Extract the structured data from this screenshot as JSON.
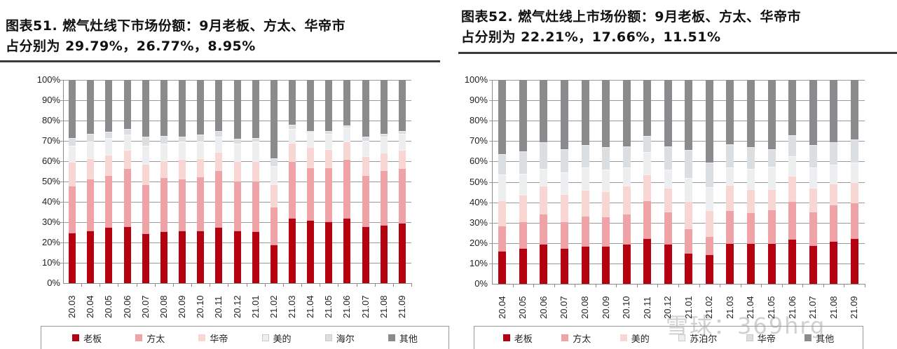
{
  "watermark": "雪球：369hrg",
  "chart_data": [
    {
      "type": "bar",
      "stacked": true,
      "title": "图表51. 燃气灶线下市场份额：9月老板、方太、华帝市占分别为 29.79%，26.77%，8.95%",
      "title_lines": [
        "图表51. 燃气灶线下市场份额：9月老板、方太、华帝市",
        "占分别为 29.79%，26.77%，8.95%"
      ],
      "xlabel": "",
      "ylabel": "",
      "ylim": [
        0,
        100
      ],
      "yticks": [
        "0%",
        "10%",
        "20%",
        "30%",
        "40%",
        "50%",
        "60%",
        "70%",
        "80%",
        "90%",
        "100%"
      ],
      "grid": true,
      "legend_position": "bottom",
      "categories": [
        "20.03",
        "20.04",
        "20.05",
        "20.06",
        "20.07",
        "20.08",
        "20.09",
        "20.10",
        "20.11",
        "20.12",
        "21.01",
        "21.02",
        "21.03",
        "21.04",
        "21.05",
        "21.06",
        "21.07",
        "21.08",
        "21.09"
      ],
      "series": [
        {
          "name": "老板",
          "color": "#b5000f",
          "values": [
            25.0,
            26.0,
            27.5,
            28.0,
            24.5,
            25.5,
            26.0,
            26.0,
            27.5,
            26.0,
            25.5,
            19.0,
            32.0,
            31.0,
            30.5,
            32.0,
            28.0,
            28.5,
            29.79
          ]
        },
        {
          "name": "方太",
          "color": "#f0a3a6",
          "values": [
            23.0,
            25.5,
            25.5,
            28.5,
            24.0,
            26.5,
            25.5,
            26.5,
            28.0,
            24.5,
            25.0,
            18.5,
            28.0,
            26.0,
            26.5,
            29.0,
            25.0,
            27.0,
            26.77
          ]
        },
        {
          "name": "华帝",
          "color": "#f8d6d4",
          "values": [
            11.5,
            10.0,
            10.0,
            9.0,
            10.0,
            8.5,
            9.5,
            9.0,
            9.0,
            9.5,
            9.5,
            11.0,
            9.0,
            10.0,
            9.0,
            8.5,
            9.5,
            8.5,
            8.95
          ]
        },
        {
          "name": "美的",
          "color": "#eceef0",
          "values": [
            8.0,
            8.0,
            8.5,
            7.5,
            9.0,
            8.0,
            8.5,
            8.0,
            7.5,
            8.5,
            9.5,
            9.0,
            7.0,
            7.0,
            7.5,
            7.0,
            7.5,
            8.0,
            8.0
          ]
        },
        {
          "name": "海尔",
          "color": "#dcdfe2",
          "values": [
            4.0,
            4.0,
            3.0,
            3.0,
            4.5,
            4.0,
            2.5,
            3.5,
            3.0,
            2.5,
            2.0,
            4.0,
            2.0,
            1.0,
            1.5,
            1.0,
            2.0,
            1.5,
            1.5
          ]
        },
        {
          "name": "其他",
          "color": "#8b8b8d",
          "values": [
            28.5,
            26.5,
            25.5,
            24.0,
            28.0,
            27.5,
            28.0,
            27.0,
            25.0,
            29.0,
            28.5,
            38.5,
            22.0,
            25.0,
            25.0,
            22.5,
            28.0,
            26.5,
            25.0
          ]
        }
      ]
    },
    {
      "type": "bar",
      "stacked": true,
      "title": "图表52. 燃气灶线上市场份额：9月老板、方太、华帝市占分别为 22.21%，17.66%，11.51%",
      "title_lines": [
        "图表52. 燃气灶线上市场份额：9月老板、方太、华帝市",
        "占分别为 22.21%，17.66%，11.51%"
      ],
      "xlabel": "",
      "ylabel": "",
      "ylim": [
        0,
        100
      ],
      "yticks": [
        "0%",
        "10%",
        "20%",
        "30%",
        "40%",
        "50%",
        "60%",
        "70%",
        "80%",
        "90%",
        "100%"
      ],
      "grid": true,
      "legend_position": "bottom",
      "categories": [
        "20.04",
        "20.05",
        "20.06",
        "20.07",
        "20.08",
        "20.09",
        "20.10",
        "20.11",
        "20.12",
        "21.01",
        "21.02",
        "21.03",
        "21.04",
        "21.05",
        "21.06",
        "21.07",
        "21.08",
        "21.09"
      ],
      "series": [
        {
          "name": "老板",
          "color": "#b5000f",
          "values": [
            16.0,
            17.5,
            19.5,
            17.5,
            18.5,
            18.5,
            19.5,
            22.5,
            19.5,
            15.0,
            14.5,
            20.0,
            20.0,
            20.0,
            22.0,
            19.0,
            21.0,
            22.21
          ]
        },
        {
          "name": "方太",
          "color": "#f0a3a6",
          "values": [
            12.5,
            13.0,
            15.0,
            13.0,
            15.0,
            14.5,
            15.0,
            18.5,
            16.0,
            12.0,
            9.0,
            16.0,
            15.0,
            16.5,
            18.5,
            16.5,
            18.0,
            17.66
          ]
        },
        {
          "name": "美的",
          "color": "#f8d6d4",
          "values": [
            12.5,
            13.0,
            13.5,
            13.5,
            12.5,
            12.5,
            13.5,
            12.5,
            11.5,
            13.5,
            12.5,
            12.5,
            11.5,
            10.0,
            12.5,
            11.5,
            10.0,
            10.0
          ]
        },
        {
          "name": "苏泊尔",
          "color": "#eceef0",
          "values": [
            12.5,
            10.5,
            8.5,
            10.5,
            11.0,
            10.5,
            9.0,
            11.0,
            9.0,
            11.5,
            11.5,
            8.5,
            10.0,
            11.0,
            9.5,
            10.0,
            9.5,
            9.5
          ]
        },
        {
          "name": "华帝",
          "color": "#dcdfe2",
          "values": [
            10.0,
            11.0,
            13.0,
            11.5,
            11.0,
            11.0,
            10.5,
            8.0,
            11.5,
            13.5,
            12.0,
            11.5,
            10.5,
            8.5,
            10.5,
            11.0,
            11.0,
            11.51
          ]
        },
        {
          "name": "其他",
          "color": "#8b8b8d",
          "values": [
            36.5,
            35.0,
            30.5,
            34.0,
            32.0,
            33.0,
            32.5,
            27.5,
            32.5,
            34.5,
            40.5,
            31.5,
            33.0,
            34.0,
            27.0,
            32.0,
            30.5,
            29.12
          ]
        }
      ]
    }
  ]
}
